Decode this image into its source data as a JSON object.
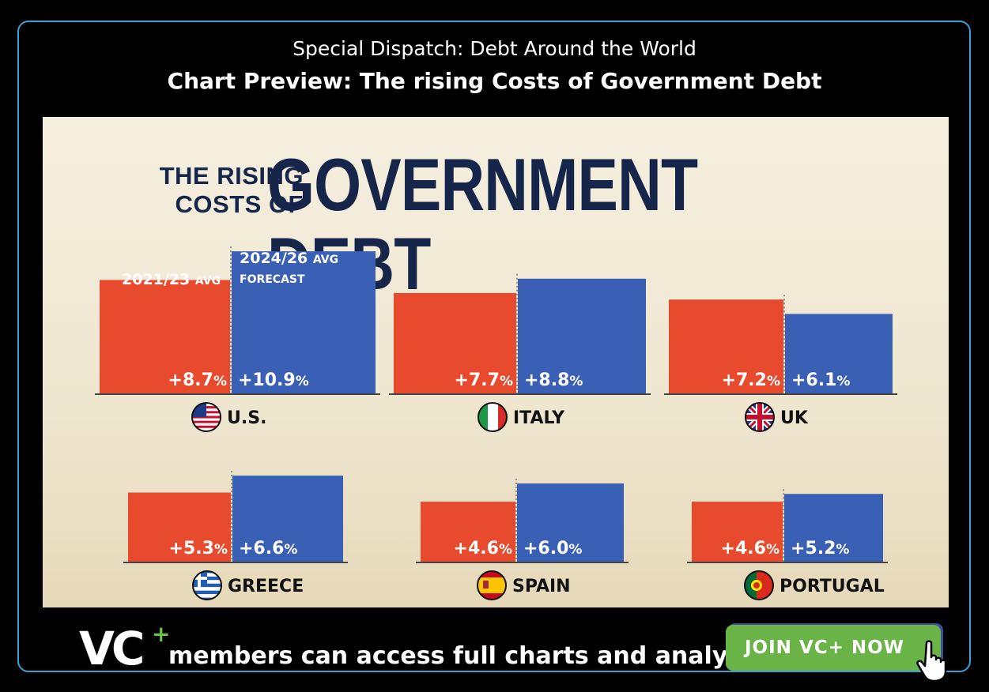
{
  "header": {
    "subtitle": "Special Dispatch: Debt Around the World",
    "title": "Chart Preview: The rising Costs of Government Debt"
  },
  "chart_data": {
    "type": "bar",
    "title_small_line1": "THE RISING",
    "title_small_line2": "COSTS OF",
    "title_big": "GOVERNMENT DEBT",
    "series": [
      {
        "name": "2021/23 AVG",
        "color": "#e84a2e"
      },
      {
        "name": "2024/26 AVG FORECAST",
        "color": "#3a60b6"
      }
    ],
    "legend": {
      "a_year": "2021/23",
      "a_suffix": "AVG",
      "b_year": "2024/26",
      "b_suffix": "AVG",
      "b_sub": "FORECAST"
    },
    "countries": [
      {
        "name": "U.S.",
        "flag": "us-flag",
        "values": [
          8.7,
          10.9
        ],
        "labels": [
          "+8.7",
          "+10.9"
        ]
      },
      {
        "name": "ITALY",
        "flag": "italy-flag",
        "values": [
          7.7,
          8.8
        ],
        "labels": [
          "+7.7",
          "+8.8"
        ]
      },
      {
        "name": "UK",
        "flag": "uk-flag",
        "values": [
          7.2,
          6.1
        ],
        "labels": [
          "+7.2",
          "+6.1"
        ]
      },
      {
        "name": "GREECE",
        "flag": "greece-flag",
        "values": [
          5.3,
          6.6
        ],
        "labels": [
          "+5.3",
          "+6.6"
        ]
      },
      {
        "name": "SPAIN",
        "flag": "spain-flag",
        "values": [
          4.6,
          6.0
        ],
        "labels": [
          "+4.6",
          "+6.0"
        ]
      },
      {
        "name": "PORTUGAL",
        "flag": "portugal-flag",
        "values": [
          4.6,
          5.2
        ],
        "labels": [
          "+4.6",
          "+5.2"
        ]
      }
    ],
    "unit": "%"
  },
  "footer": {
    "logo": "VC",
    "logo_plus": "+",
    "text": "members can access full charts and analysis",
    "button": "JOIN VC+ NOW",
    "cursor_icon": "hand-pointer-icon",
    "accent": "#6ab447"
  }
}
